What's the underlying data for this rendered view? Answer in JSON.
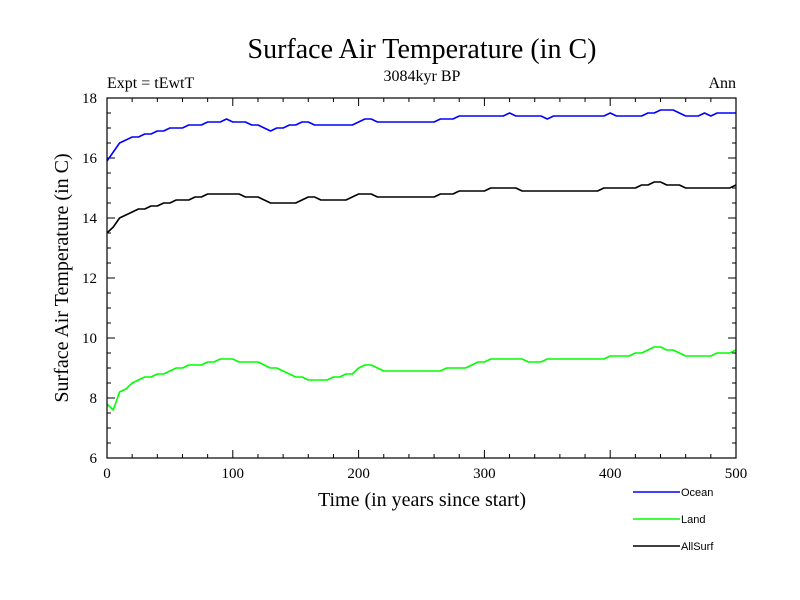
{
  "chart_data": {
    "type": "line",
    "title": "Surface Air Temperature (in C)",
    "subtitle_left": "Expt = tEwtT",
    "subtitle_center": "3084kyr BP",
    "subtitle_right": "Ann",
    "xlabel": "Time (in years since start)",
    "ylabel": "Surface Air Temperature (in C)",
    "xlim": [
      0,
      500
    ],
    "ylim": [
      6,
      18
    ],
    "xticks": [
      0,
      100,
      200,
      300,
      400,
      500
    ],
    "yticks": [
      6,
      8,
      10,
      12,
      14,
      16,
      18
    ],
    "x_start": 0,
    "x_step": 5,
    "series": [
      {
        "name": "Ocean",
        "color": "#0000ff",
        "values": [
          15.9,
          16.2,
          16.5,
          16.6,
          16.7,
          16.7,
          16.8,
          16.8,
          16.9,
          16.9,
          17.0,
          17.0,
          17.0,
          17.1,
          17.1,
          17.1,
          17.2,
          17.2,
          17.2,
          17.3,
          17.2,
          17.2,
          17.2,
          17.1,
          17.1,
          17.0,
          16.9,
          17.0,
          17.0,
          17.1,
          17.1,
          17.2,
          17.2,
          17.1,
          17.1,
          17.1,
          17.1,
          17.1,
          17.1,
          17.1,
          17.2,
          17.3,
          17.3,
          17.2,
          17.2,
          17.2,
          17.2,
          17.2,
          17.2,
          17.2,
          17.2,
          17.2,
          17.2,
          17.3,
          17.3,
          17.3,
          17.4,
          17.4,
          17.4,
          17.4,
          17.4,
          17.4,
          17.4,
          17.4,
          17.5,
          17.4,
          17.4,
          17.4,
          17.4,
          17.4,
          17.3,
          17.4,
          17.4,
          17.4,
          17.4,
          17.4,
          17.4,
          17.4,
          17.4,
          17.4,
          17.5,
          17.4,
          17.4,
          17.4,
          17.4,
          17.4,
          17.5,
          17.5,
          17.6,
          17.6,
          17.6,
          17.5,
          17.4,
          17.4,
          17.4,
          17.5,
          17.4,
          17.5,
          17.5,
          17.5,
          17.5
        ]
      },
      {
        "name": "Land",
        "color": "#00ff00",
        "values": [
          7.8,
          7.6,
          8.2,
          8.3,
          8.5,
          8.6,
          8.7,
          8.7,
          8.8,
          8.8,
          8.9,
          9.0,
          9.0,
          9.1,
          9.1,
          9.1,
          9.2,
          9.2,
          9.3,
          9.3,
          9.3,
          9.2,
          9.2,
          9.2,
          9.2,
          9.1,
          9.0,
          9.0,
          8.9,
          8.8,
          8.7,
          8.7,
          8.6,
          8.6,
          8.6,
          8.6,
          8.7,
          8.7,
          8.8,
          8.8,
          9.0,
          9.1,
          9.1,
          9.0,
          8.9,
          8.9,
          8.9,
          8.9,
          8.9,
          8.9,
          8.9,
          8.9,
          8.9,
          8.9,
          9.0,
          9.0,
          9.0,
          9.0,
          9.1,
          9.2,
          9.2,
          9.3,
          9.3,
          9.3,
          9.3,
          9.3,
          9.3,
          9.2,
          9.2,
          9.2,
          9.3,
          9.3,
          9.3,
          9.3,
          9.3,
          9.3,
          9.3,
          9.3,
          9.3,
          9.3,
          9.4,
          9.4,
          9.4,
          9.4,
          9.5,
          9.5,
          9.6,
          9.7,
          9.7,
          9.6,
          9.6,
          9.5,
          9.4,
          9.4,
          9.4,
          9.4,
          9.4,
          9.5,
          9.5,
          9.5,
          9.6
        ]
      },
      {
        "name": "AllSurf",
        "color": "#000000",
        "values": [
          13.5,
          13.7,
          14.0,
          14.1,
          14.2,
          14.3,
          14.3,
          14.4,
          14.4,
          14.5,
          14.5,
          14.6,
          14.6,
          14.6,
          14.7,
          14.7,
          14.8,
          14.8,
          14.8,
          14.8,
          14.8,
          14.8,
          14.7,
          14.7,
          14.7,
          14.6,
          14.5,
          14.5,
          14.5,
          14.5,
          14.5,
          14.6,
          14.7,
          14.7,
          14.6,
          14.6,
          14.6,
          14.6,
          14.6,
          14.7,
          14.8,
          14.8,
          14.8,
          14.7,
          14.7,
          14.7,
          14.7,
          14.7,
          14.7,
          14.7,
          14.7,
          14.7,
          14.7,
          14.8,
          14.8,
          14.8,
          14.9,
          14.9,
          14.9,
          14.9,
          14.9,
          15.0,
          15.0,
          15.0,
          15.0,
          15.0,
          14.9,
          14.9,
          14.9,
          14.9,
          14.9,
          14.9,
          14.9,
          14.9,
          14.9,
          14.9,
          14.9,
          14.9,
          14.9,
          15.0,
          15.0,
          15.0,
          15.0,
          15.0,
          15.0,
          15.1,
          15.1,
          15.2,
          15.2,
          15.1,
          15.1,
          15.1,
          15.0,
          15.0,
          15.0,
          15.0,
          15.0,
          15.0,
          15.0,
          15.0,
          15.1
        ]
      }
    ],
    "legend_position": "bottom-right"
  }
}
